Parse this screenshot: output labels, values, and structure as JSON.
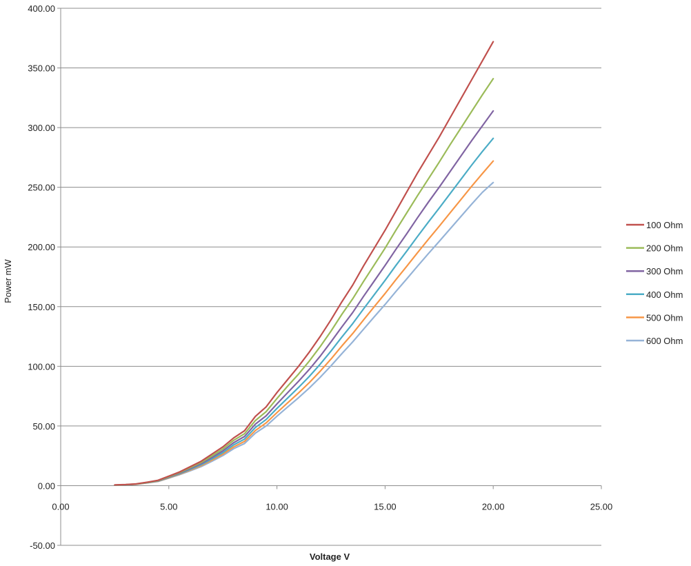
{
  "chart_data": {
    "type": "line",
    "title": "",
    "xlabel": "Voltage V",
    "ylabel": "Power  mW",
    "xlim": [
      0,
      25
    ],
    "ylim": [
      -50,
      400
    ],
    "x_ticks": [
      0,
      5,
      10,
      15,
      20,
      25
    ],
    "y_ticks": [
      -50,
      0,
      50,
      100,
      150,
      200,
      250,
      300,
      350,
      400
    ],
    "x_tick_labels": [
      "0.00",
      "5.00",
      "10.00",
      "15.00",
      "20.00",
      "25.00"
    ],
    "y_tick_labels": [
      "-50.00",
      "0.00",
      "50.00",
      "100.00",
      "150.00",
      "200.00",
      "250.00",
      "300.00",
      "350.00",
      "400.00"
    ],
    "grid": "horizontal",
    "legend_position": "right",
    "x": [
      2.5,
      3,
      3.5,
      4,
      4.5,
      5,
      5.5,
      6,
      6.5,
      7,
      7.5,
      8,
      8.5,
      9,
      9.5,
      10,
      10.5,
      11,
      11.5,
      12,
      12.5,
      13,
      13.5,
      14,
      14.5,
      15,
      15.5,
      16,
      16.5,
      17,
      17.5,
      18,
      18.5,
      19,
      19.5,
      20
    ],
    "series": [
      {
        "name": "100 Ohm",
        "color": "#c0504d",
        "values": [
          0.6,
          0.9,
          1.5,
          2.9,
          4.5,
          8.0,
          11.5,
          16.0,
          20.5,
          26.5,
          32.5,
          40.0,
          46.0,
          58.0,
          66.0,
          78.0,
          89.0,
          100.0,
          112.0,
          125.0,
          139.0,
          154.0,
          168.0,
          184.0,
          199.0,
          214.0,
          230.0,
          246.0,
          262.0,
          277.0,
          292.0,
          308.0,
          324.0,
          340.0,
          356.0,
          372.0
        ]
      },
      {
        "name": "200 Ohm",
        "color": "#9bbb59",
        "values": [
          0.5,
          0.8,
          1.4,
          2.7,
          4.3,
          7.6,
          11.0,
          15.2,
          19.5,
          25.0,
          30.8,
          38.0,
          43.5,
          54.5,
          62.0,
          73.0,
          83.5,
          93.5,
          104.5,
          116.5,
          129.5,
          143.5,
          156.5,
          171.0,
          185.0,
          199.0,
          214.0,
          228.5,
          243.0,
          257.0,
          271.0,
          285.5,
          299.5,
          313.5,
          327.5,
          341.0
        ]
      },
      {
        "name": "300 Ohm",
        "color": "#8064a2",
        "values": [
          0.5,
          0.8,
          1.3,
          2.6,
          4.1,
          7.2,
          10.5,
          14.4,
          18.5,
          23.7,
          29.2,
          36.0,
          41.2,
          51.5,
          58.5,
          68.5,
          78.0,
          87.5,
          97.5,
          108.5,
          120.5,
          133.0,
          145.0,
          158.5,
          171.5,
          184.5,
          198.0,
          211.0,
          224.5,
          237.5,
          250.0,
          263.0,
          276.0,
          289.0,
          301.5,
          314.0
        ]
      },
      {
        "name": "400 Ohm",
        "color": "#4bacc6",
        "values": [
          0.4,
          0.7,
          1.3,
          2.5,
          3.9,
          6.9,
          10.0,
          13.7,
          17.6,
          22.5,
          27.7,
          34.2,
          39.0,
          48.7,
          55.4,
          64.7,
          73.5,
          82.3,
          91.6,
          101.8,
          112.8,
          124.5,
          135.7,
          148.0,
          160.0,
          172.0,
          184.5,
          196.5,
          208.8,
          220.8,
          232.5,
          244.5,
          256.5,
          268.5,
          280.0,
          291.0
        ]
      },
      {
        "name": "500 Ohm",
        "color": "#f79646",
        "values": [
          0.4,
          0.7,
          1.2,
          2.4,
          3.7,
          6.6,
          9.6,
          13.1,
          16.8,
          21.5,
          26.4,
          32.5,
          37.1,
          46.2,
          52.6,
          61.2,
          69.5,
          77.7,
          86.4,
          95.9,
          106.1,
          117.0,
          127.4,
          138.8,
          150.0,
          161.0,
          172.6,
          183.8,
          195.2,
          206.4,
          217.3,
          228.5,
          239.6,
          250.8,
          261.5,
          272.0
        ]
      },
      {
        "name": "600 Ohm",
        "color": "#95b3d7",
        "values": [
          0.4,
          0.6,
          1.1,
          2.3,
          3.5,
          6.3,
          9.2,
          12.5,
          16.0,
          20.5,
          25.2,
          31.0,
          35.3,
          44.0,
          50.0,
          58.2,
          66.0,
          73.7,
          81.9,
          90.8,
          100.4,
          110.6,
          120.4,
          131.0,
          141.5,
          151.8,
          162.7,
          173.2,
          183.9,
          194.4,
          204.6,
          215.0,
          225.4,
          235.8,
          245.8,
          254.0
        ]
      }
    ]
  }
}
